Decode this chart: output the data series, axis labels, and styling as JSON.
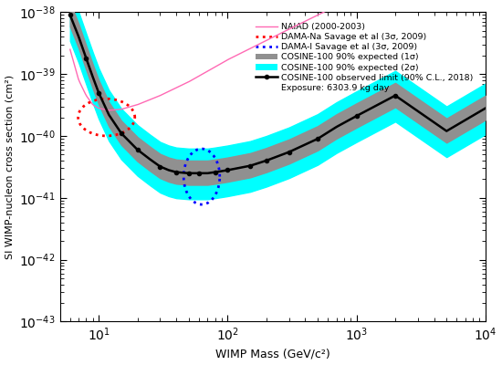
{
  "xlim": [
    5,
    10000
  ],
  "ylim": [
    1e-43,
    1e-38
  ],
  "xlabel": "WIMP Mass (GeV/c²)",
  "ylabel": "SI WIMP-nucleon cross section (cm²)",
  "legend_entries": [
    "NAIAD (2000-2003)",
    "DAMA-Na Savage et al (3σ, 2009)",
    "DAMA-I Savage et al (3σ, 2009)",
    "COSINE-100 90% expected (1σ)",
    "COSINE-100 90% expected (2σ)",
    "COSINE-100 observed limit (90% C.L., 2018)",
    "Exposure: 6303.9 kg day"
  ],
  "background_color": "#ffffff"
}
